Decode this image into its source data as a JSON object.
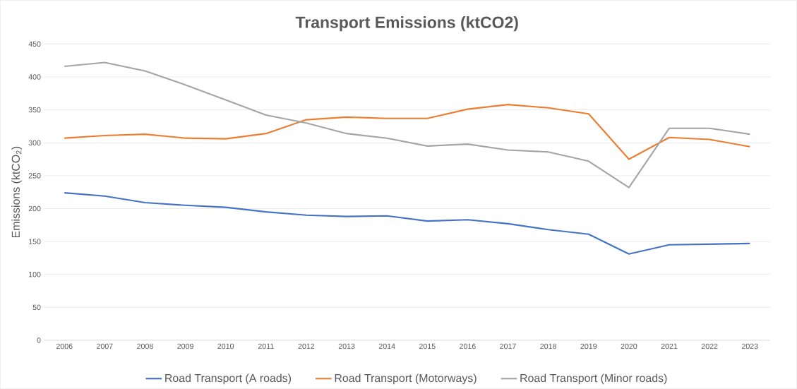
{
  "chart_data": {
    "type": "line",
    "title": "Transport Emissions (ktCO2)",
    "ylabel": "Emissions (ktCO$_{2}$)",
    "categories": [
      "2006",
      "2007",
      "2008",
      "2009",
      "2010",
      "2011",
      "2012",
      "2013",
      "2014",
      "2015",
      "2016",
      "2017",
      "2018",
      "2019",
      "2020",
      "2021",
      "2022",
      "2023"
    ],
    "series": [
      {
        "name": "Road Transport (A roads)",
        "color": "#4472c4",
        "values": [
          224,
          219,
          209,
          205,
          202,
          195,
          190,
          188,
          189,
          181,
          183,
          177,
          168,
          161,
          131,
          145,
          146,
          147
        ]
      },
      {
        "name": "Road Transport (Motorways)",
        "color": "#ed7d31",
        "values": [
          307,
          311,
          313,
          307,
          306,
          314,
          335,
          339,
          337,
          337,
          351,
          358,
          353,
          344,
          275,
          308,
          305,
          294
        ]
      },
      {
        "name": "Road Transport (Minor roads)",
        "color": "#a5a5a5",
        "values": [
          416,
          422,
          409,
          388,
          365,
          342,
          330,
          314,
          307,
          295,
          298,
          289,
          286,
          272,
          232,
          322,
          322,
          313
        ]
      }
    ],
    "ylim": [
      0,
      450
    ],
    "yticks": [
      0,
      50,
      100,
      150,
      200,
      250,
      300,
      350,
      400,
      450
    ],
    "grid": "y",
    "legend": "bottom",
    "marker": "none",
    "line_style": "solid"
  }
}
